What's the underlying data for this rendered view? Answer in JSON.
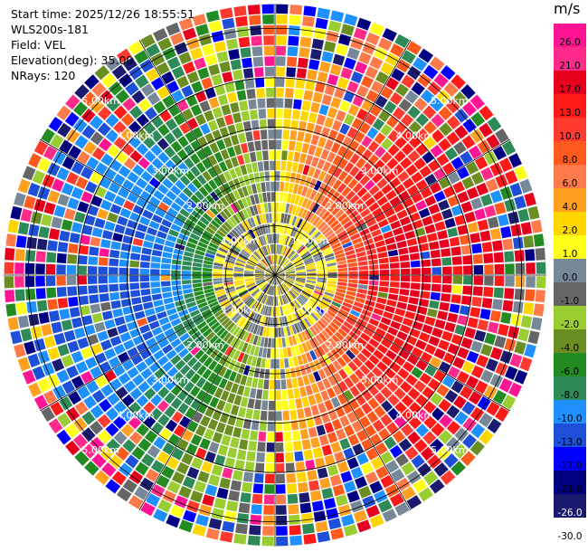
{
  "info": {
    "start_time": "Start time: 2025/12/26 18:55:51",
    "instrument": "WLS200s-181",
    "field": "Field: VEL",
    "elevation": "Elevation(deg): 35.00",
    "nrays": "NRays: 120"
  },
  "colorbar": {
    "unit": "m/s",
    "labels": [
      "26.0",
      "21.0",
      "17.0",
      "13.0",
      "10.0",
      "8.0",
      "6.0",
      "4.0",
      "2.0",
      "1.0",
      "0.0",
      "-1.0",
      "-2.0",
      "-4.0",
      "-6.0",
      "-8.0",
      "-10.0",
      "-13.0",
      "-17.0",
      "-21.0",
      "-26.0",
      "-30.0"
    ],
    "colors": [
      "#ff1493",
      "#ff2a8a",
      "#e6001e",
      "#ff1a1a",
      "#ff3b30",
      "#ff5a1e",
      "#ff7a4a",
      "#ffa020",
      "#ffd600",
      "#ffff1a",
      "#778899",
      "#666666",
      "#9acd32",
      "#6b8e23",
      "#228b22",
      "#2e8b57",
      "#1e90ff",
      "#1e4fd8",
      "#0000ff",
      "#000080",
      "#1a1a6e"
    ]
  },
  "chart_data": {
    "type": "heatmap",
    "projection": "polar PPI",
    "rays": 120,
    "range_rings_km": [
      1.0,
      2.0,
      3.0,
      4.0,
      5.0
    ],
    "ring_labels": [
      "1.00km",
      "2.00km",
      "3.00km",
      "4.00km",
      "5.00km"
    ],
    "value_range": [
      -30.0,
      26.0
    ],
    "unit": "m/s"
  }
}
